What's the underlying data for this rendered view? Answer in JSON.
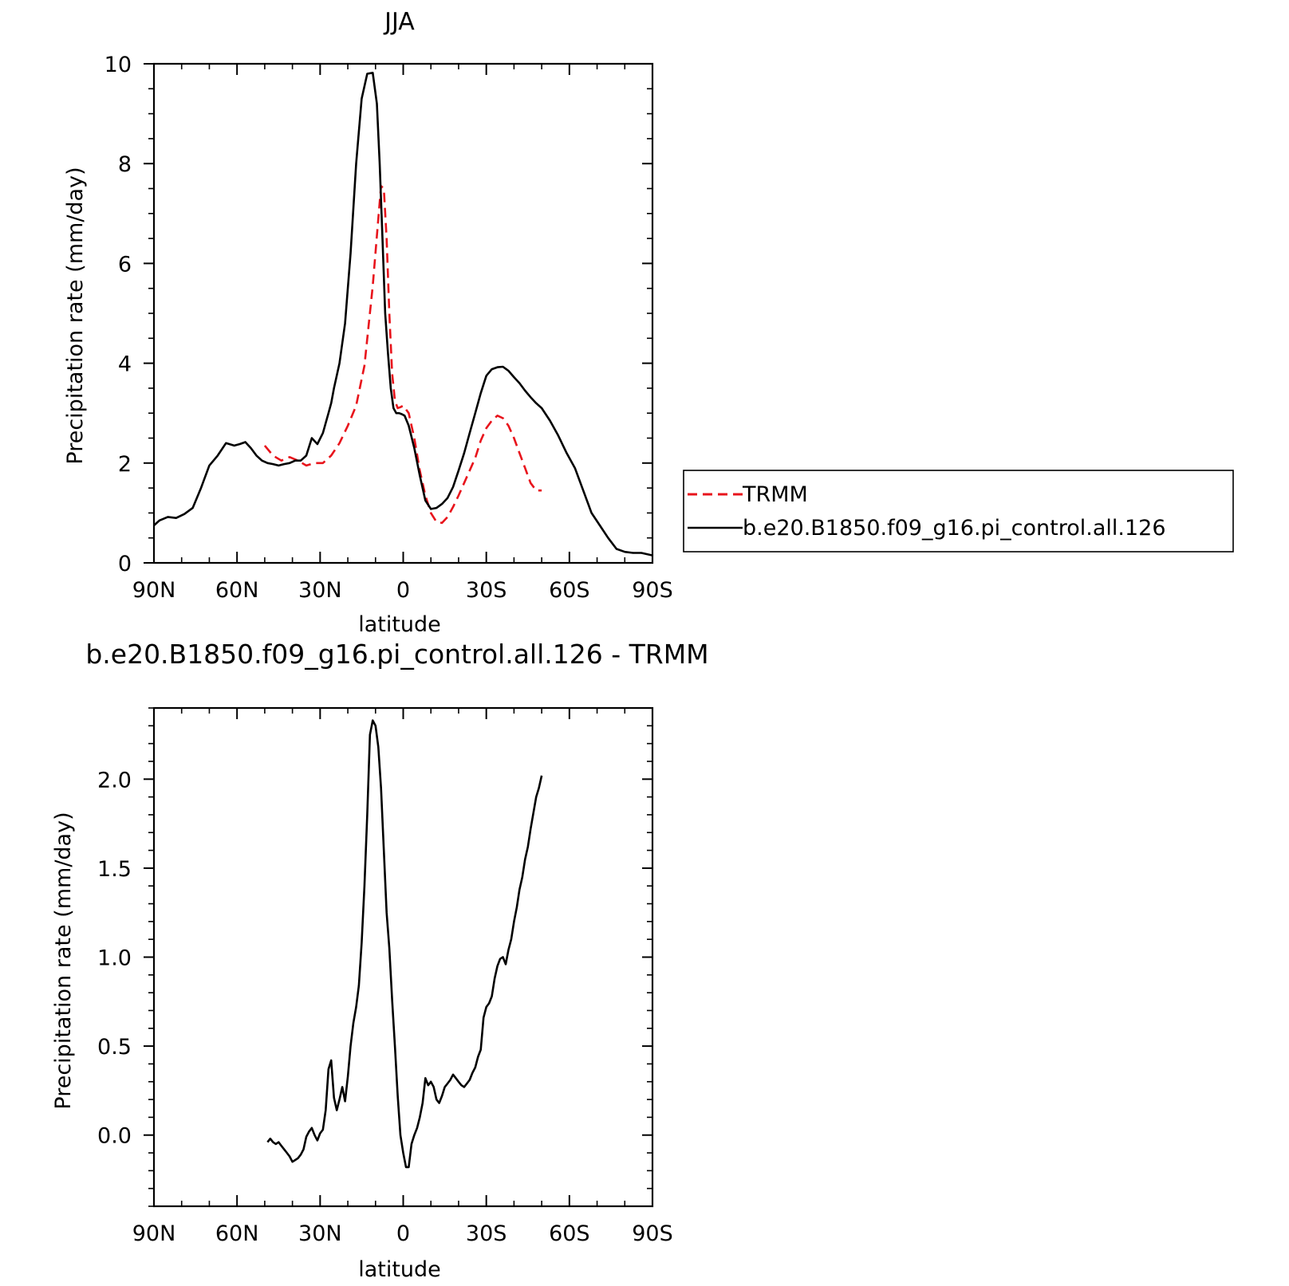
{
  "chart_data": [
    {
      "type": "line",
      "title": "JJA",
      "xlabel": "latitude",
      "ylabel": "Precipitation rate (mm/day)",
      "xlim": [
        90,
        -90
      ],
      "ylim": [
        0,
        10
      ],
      "xticks": [
        {
          "value": 90,
          "label": "90N"
        },
        {
          "value": 60,
          "label": "60N"
        },
        {
          "value": 30,
          "label": "30N"
        },
        {
          "value": 0,
          "label": "0"
        },
        {
          "value": -30,
          "label": "30S"
        },
        {
          "value": -60,
          "label": "60S"
        },
        {
          "value": -90,
          "label": "90S"
        }
      ],
      "yticks": [
        {
          "value": 0,
          "label": "0"
        },
        {
          "value": 2,
          "label": "2"
        },
        {
          "value": 4,
          "label": "4"
        },
        {
          "value": 6,
          "label": "6"
        },
        {
          "value": 8,
          "label": "8"
        },
        {
          "value": 10,
          "label": "10"
        }
      ],
      "legend_position": "right",
      "series": [
        {
          "name": "TRMM",
          "color": "#e8141c",
          "dash": true,
          "x": [
            50,
            47,
            44,
            41,
            38,
            35,
            32,
            29,
            26,
            23,
            20,
            17,
            14,
            11,
            9,
            8,
            7,
            6,
            5,
            4,
            3,
            2,
            1,
            0,
            -2,
            -4,
            -6,
            -8,
            -10,
            -12,
            -14,
            -16,
            -18,
            -20,
            -22,
            -24,
            -26,
            -28,
            -30,
            -32,
            -34,
            -36,
            -38,
            -40,
            -42,
            -44,
            -46,
            -48,
            -50
          ],
          "values": [
            2.35,
            2.15,
            2.05,
            2.12,
            2.05,
            1.95,
            2.0,
            2.0,
            2.15,
            2.4,
            2.75,
            3.15,
            3.95,
            5.55,
            6.9,
            7.55,
            7.5,
            6.5,
            5.0,
            3.8,
            3.25,
            3.1,
            3.12,
            3.15,
            3.0,
            2.5,
            1.85,
            1.35,
            1.0,
            0.82,
            0.8,
            0.92,
            1.12,
            1.35,
            1.6,
            1.85,
            2.1,
            2.45,
            2.7,
            2.85,
            2.95,
            2.9,
            2.75,
            2.5,
            2.2,
            1.9,
            1.6,
            1.45,
            1.45
          ]
        },
        {
          "name": "b.e20.B1850.f09_g16.pi_control.all.126",
          "color": "#000000",
          "dash": false,
          "x": [
            90,
            88,
            85,
            82,
            79,
            76,
            73,
            70,
            67,
            64,
            61,
            59,
            57,
            55,
            53,
            51,
            49,
            47,
            45,
            43,
            41,
            39,
            37,
            35,
            33,
            31,
            29,
            28,
            27,
            26,
            25,
            23,
            21,
            19,
            17,
            15,
            13,
            11,
            9.5,
            8.5,
            7.5,
            6.5,
            5.5,
            4.5,
            3.5,
            2.5,
            1.5,
            0.5,
            -0.5,
            -2,
            -4,
            -6,
            -8,
            -10,
            -12,
            -14,
            -16,
            -18,
            -20,
            -22,
            -24,
            -26,
            -28,
            -30,
            -32,
            -34,
            -36,
            -38,
            -40,
            -42,
            -44,
            -46,
            -48,
            -50,
            -53,
            -56,
            -59,
            -62,
            -65,
            -68,
            -71,
            -74,
            -77,
            -80,
            -83,
            -86,
            -90
          ],
          "values": [
            0.75,
            0.85,
            0.92,
            0.9,
            0.98,
            1.1,
            1.5,
            1.95,
            2.15,
            2.4,
            2.35,
            2.38,
            2.42,
            2.3,
            2.15,
            2.05,
            2.0,
            1.98,
            1.95,
            1.98,
            2.0,
            2.05,
            2.05,
            2.15,
            2.5,
            2.38,
            2.6,
            2.8,
            3.0,
            3.2,
            3.5,
            4.0,
            4.8,
            6.2,
            8.0,
            9.3,
            9.8,
            9.82,
            9.2,
            8.0,
            6.5,
            5.0,
            4.2,
            3.5,
            3.1,
            3.0,
            3.0,
            2.98,
            2.95,
            2.75,
            2.3,
            1.75,
            1.25,
            1.08,
            1.1,
            1.18,
            1.3,
            1.52,
            1.85,
            2.2,
            2.6,
            3.0,
            3.4,
            3.75,
            3.88,
            3.92,
            3.93,
            3.85,
            3.72,
            3.6,
            3.45,
            3.32,
            3.2,
            3.1,
            2.85,
            2.55,
            2.2,
            1.9,
            1.45,
            1.0,
            0.75,
            0.5,
            0.28,
            0.22,
            0.2,
            0.2,
            0.15
          ]
        }
      ]
    },
    {
      "type": "line",
      "title": "b.e20.B1850.f09_g16.pi_control.all.126 - TRMM",
      "xlabel": "latitude",
      "ylabel": "Precipitation rate (mm/day)",
      "xlim": [
        90,
        -90
      ],
      "ylim": [
        -0.4,
        2.4
      ],
      "xticks": [
        {
          "value": 90,
          "label": "90N"
        },
        {
          "value": 60,
          "label": "60N"
        },
        {
          "value": 30,
          "label": "30N"
        },
        {
          "value": 0,
          "label": "0"
        },
        {
          "value": -30,
          "label": "30S"
        },
        {
          "value": -60,
          "label": "60S"
        },
        {
          "value": -90,
          "label": "90S"
        }
      ],
      "yticks": [
        {
          "value": 0.0,
          "label": "0.0"
        },
        {
          "value": 0.5,
          "label": "0.5"
        },
        {
          "value": 1.0,
          "label": "1.0"
        },
        {
          "value": 1.5,
          "label": "1.5"
        },
        {
          "value": 2.0,
          "label": "2.0"
        }
      ],
      "series": [
        {
          "color": "#000000",
          "dash": false,
          "x": [
            49,
            48,
            47,
            46,
            45,
            44,
            43,
            42,
            41,
            40,
            39,
            38,
            37,
            36,
            35,
            34,
            33,
            32,
            31,
            30,
            29,
            28,
            27,
            26,
            25,
            24,
            23,
            22,
            21,
            20,
            19,
            18,
            17,
            16,
            15,
            14,
            13,
            12,
            11,
            10,
            9,
            8,
            7,
            6,
            5,
            4,
            3,
            2,
            1,
            0,
            -1,
            -2,
            -3,
            -4,
            -5,
            -6,
            -7,
            -8,
            -9,
            -10,
            -11,
            -12,
            -13,
            -14,
            -15,
            -16,
            -17,
            -18,
            -19,
            -20,
            -21,
            -22,
            -23,
            -24,
            -25,
            -26,
            -27,
            -28,
            -29,
            -30,
            -31,
            -32,
            -33,
            -34,
            -35,
            -36,
            -37,
            -38,
            -39,
            -40,
            -41,
            -42,
            -43,
            -44,
            -45,
            -46,
            -47,
            -48,
            -49,
            -50
          ],
          "values": [
            -0.04,
            -0.02,
            -0.04,
            -0.05,
            -0.04,
            -0.06,
            -0.08,
            -0.1,
            -0.12,
            -0.15,
            -0.14,
            -0.13,
            -0.11,
            -0.08,
            -0.01,
            0.02,
            0.04,
            0.0,
            -0.03,
            0.01,
            0.03,
            0.14,
            0.37,
            0.42,
            0.21,
            0.14,
            0.2,
            0.27,
            0.19,
            0.33,
            0.5,
            0.63,
            0.72,
            0.84,
            1.08,
            1.4,
            1.8,
            2.25,
            2.33,
            2.3,
            2.18,
            1.95,
            1.6,
            1.25,
            1.05,
            0.76,
            0.5,
            0.22,
            0.0,
            -0.1,
            -0.18,
            -0.18,
            -0.05,
            0.0,
            0.04,
            0.1,
            0.18,
            0.32,
            0.28,
            0.3,
            0.27,
            0.2,
            0.18,
            0.22,
            0.27,
            0.29,
            0.31,
            0.34,
            0.32,
            0.3,
            0.28,
            0.27,
            0.29,
            0.31,
            0.35,
            0.38,
            0.44,
            0.48,
            0.66,
            0.72,
            0.74,
            0.78,
            0.88,
            0.95,
            0.99,
            1.0,
            0.96,
            1.04,
            1.1,
            1.2,
            1.28,
            1.38,
            1.45,
            1.55,
            1.62,
            1.72,
            1.81,
            1.9,
            1.95,
            2.02
          ]
        }
      ]
    }
  ]
}
